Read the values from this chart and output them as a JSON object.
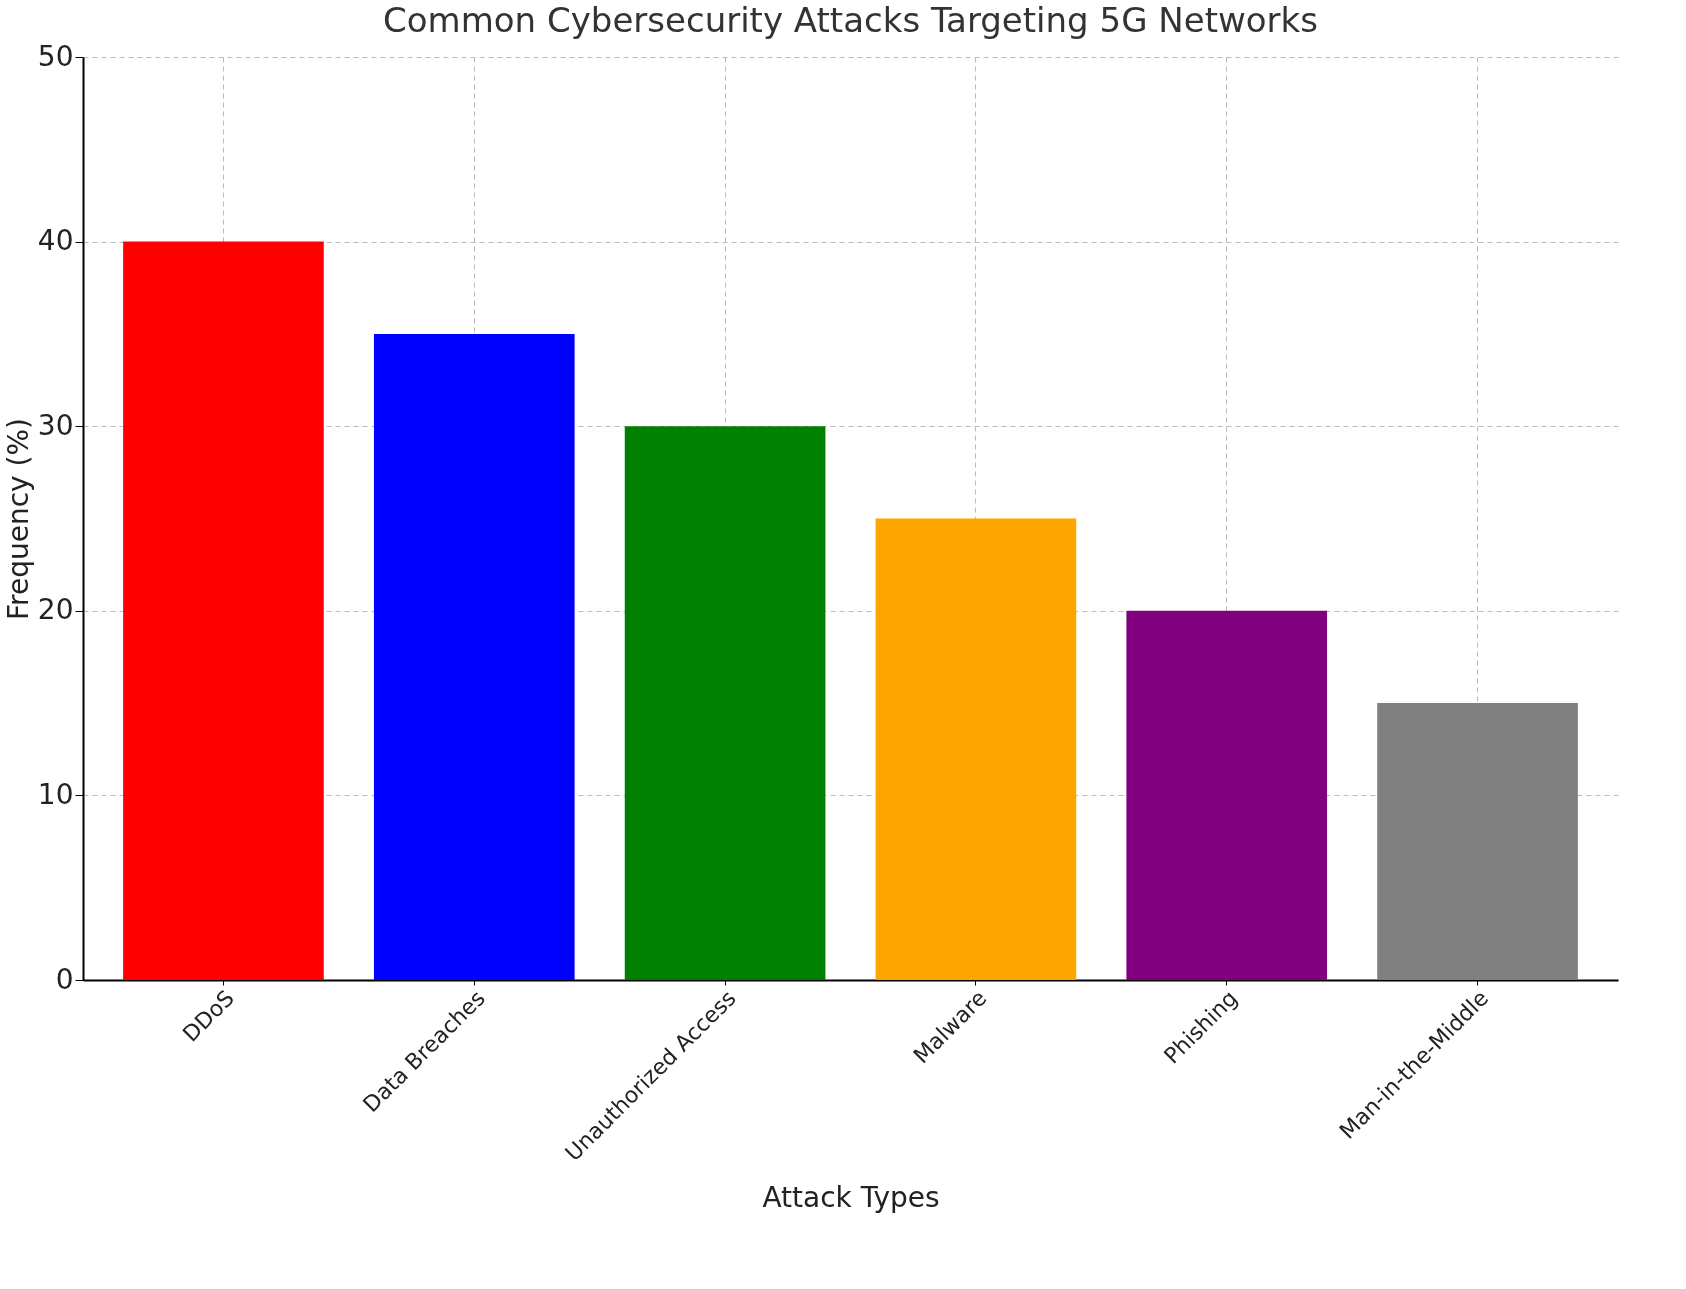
{
  "chart_data": {
    "type": "bar",
    "title": "Common Cybersecurity Attacks Targeting 5G Networks",
    "xlabel": "Attack Types",
    "ylabel": "Frequency (%)",
    "categories": [
      "DDoS",
      "Data Breaches",
      "Unauthorized Access",
      "Malware",
      "Phishing",
      "Man-in-the-Middle"
    ],
    "values": [
      40,
      35,
      30,
      25,
      20,
      15
    ],
    "colors": [
      "#ff0000",
      "#0000ff",
      "#008000",
      "#ffa500",
      "#800080",
      "#808080"
    ],
    "ylim": [
      0,
      50
    ],
    "yticks": [
      0,
      10,
      20,
      30,
      40,
      50
    ],
    "grid": true
  }
}
